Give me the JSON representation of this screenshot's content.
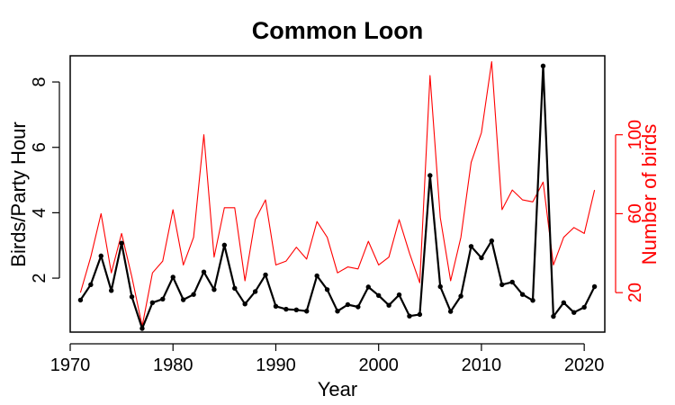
{
  "chart_data": {
    "type": "line",
    "title": "Common Loon",
    "xlabel": "Year",
    "ylabel": "Birds/Party Hour",
    "ylabel_right": "Number of birds",
    "xlim": [
      1970,
      2022
    ],
    "ylim": [
      0.35,
      8.8
    ],
    "ylim_right": [
      0,
      140
    ],
    "x_ticks": [
      1970,
      1980,
      1990,
      2000,
      2010,
      2020
    ],
    "y_ticks": [
      2,
      4,
      6,
      8
    ],
    "y_ticks_right": [
      20,
      60,
      100
    ],
    "grid": false,
    "legend": "none",
    "x": [
      1971,
      1972,
      1973,
      1974,
      1975,
      1976,
      1977,
      1978,
      1979,
      1980,
      1981,
      1982,
      1983,
      1984,
      1985,
      1986,
      1987,
      1988,
      1989,
      1990,
      1991,
      1992,
      1993,
      1994,
      1995,
      1996,
      1997,
      1998,
      1999,
      2000,
      2001,
      2002,
      2003,
      2004,
      2005,
      2006,
      2007,
      2008,
      2009,
      2010,
      2011,
      2012,
      2013,
      2014,
      2015,
      2016,
      2017,
      2018,
      2019,
      2020,
      2021
    ],
    "series": [
      {
        "axis": "left",
        "color": "#000000",
        "markers": true,
        "values": [
          1.33,
          1.8,
          2.68,
          1.62,
          3.07,
          1.43,
          0.46,
          1.25,
          1.36,
          2.03,
          1.34,
          1.5,
          2.19,
          1.65,
          3.01,
          1.69,
          1.21,
          1.59,
          2.1,
          1.14,
          1.05,
          1.03,
          0.99,
          2.07,
          1.65,
          0.99,
          1.19,
          1.12,
          1.73,
          1.47,
          1.17,
          1.49,
          0.84,
          0.89,
          5.14,
          1.74,
          0.98,
          1.45,
          2.97,
          2.62,
          3.14,
          1.8,
          1.88,
          1.5,
          1.32,
          8.49,
          0.83,
          1.25,
          0.95,
          1.11,
          1.74
        ]
      },
      {
        "axis": "right",
        "color": "#ff0000",
        "markers": false,
        "values": [
          20,
          38,
          60,
          30,
          50,
          28,
          3,
          30,
          36,
          62,
          34,
          48,
          100,
          38,
          63,
          63,
          26,
          57,
          67,
          34,
          36,
          43,
          37,
          56,
          48,
          30,
          33,
          32,
          46,
          34,
          38,
          57,
          40,
          25,
          130,
          58,
          26,
          48,
          86,
          101,
          137,
          62,
          72,
          67,
          66,
          76,
          34,
          48,
          53,
          50,
          72
        ]
      }
    ]
  }
}
